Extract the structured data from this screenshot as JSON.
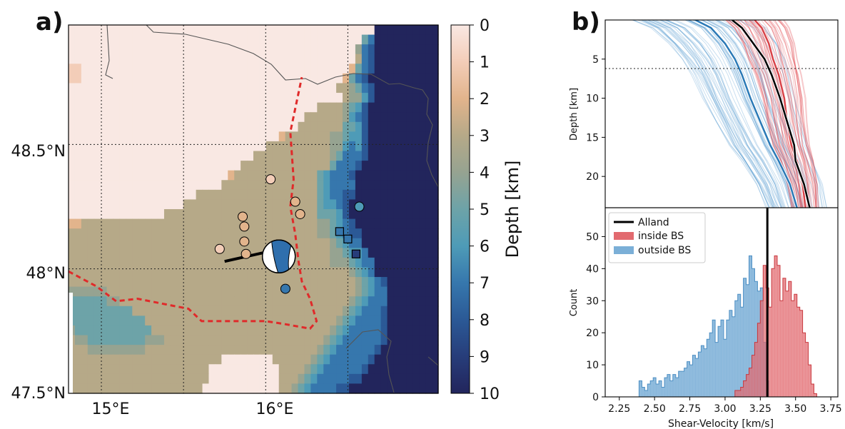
{
  "panel_a": {
    "label": "a)",
    "lat_ticks": [
      "48.5°N",
      "48°N",
      "47.5°N"
    ],
    "lon_ticks": [
      "15°E",
      "16°E"
    ],
    "colorbar": {
      "title": "Depth [km]",
      "ticks": [
        "0",
        "1",
        "2",
        "3",
        "4",
        "5",
        "6",
        "7",
        "8",
        "9",
        "10"
      ],
      "colors": [
        "#f9e8e3",
        "#f3cdb8",
        "#e2b48c",
        "#b6a988",
        "#96a391",
        "#6da3a8",
        "#4e9bb7",
        "#3677ad",
        "#2b5996",
        "#273d7a",
        "#22255c"
      ]
    }
  },
  "panel_b": {
    "label": "b)",
    "profile_ylabel": "Depth [km]",
    "profile_yticks": [
      "5",
      "10",
      "15",
      "20"
    ],
    "hist_ylabel": "Count",
    "hist_yticks": [
      "0",
      "10",
      "20",
      "30",
      "40",
      "50"
    ],
    "xlabel": "Shear-Velocity [km/s]",
    "xticks": [
      "2.25",
      "2.50",
      "2.75",
      "3.00",
      "3.25",
      "3.50",
      "3.75"
    ],
    "legend": [
      {
        "label": "Alland",
        "color": "#000000"
      },
      {
        "label": "inside BS",
        "color": "#e26a6f"
      },
      {
        "label": "outside BS",
        "color": "#7bafd7"
      }
    ]
  },
  "chart_data": [
    {
      "type": "heatmap",
      "title": "",
      "colorbar_label": "Depth [km]",
      "colorbar_range": [
        0,
        10
      ],
      "xlabel": "",
      "ylabel": "",
      "xlim": [
        14.8,
        17.05
      ],
      "ylim": [
        47.5,
        48.98
      ],
      "lon_ticks": [
        15,
        16
      ],
      "lat_ticks": [
        47.5,
        48,
        48.5
      ],
      "grid": true,
      "cells_depth_km_by_rows_north_to_south": [
        "0000000000000000000000000000000000000000000000009999999999",
        "0000000000000000000000000000000000000000000000579999999999",
        "0000000000000000000000000000000000000000000004789999999999",
        "0000000000000000000000000000000000000000000003789999999999",
        "1100000000000000000000000000000000000000000025789999999999",
        "1100000000000000000000000000000000000000000257899999999999",
        "0000000000000000000000000000000000000000003345789999999999",
        "0000000000000000000000000000000000000000000344689999999999",
        "0000000000000000000000000000000000000003333456899999999999",
        "0000000000000000000000000000000000000333333467899999999999",
        "0000000000000000000000000000000000003333333556899999999999",
        "0000000000000000000000000000000002333333344566899999999999",
        "0000000000000000000000000000000333333333344676899999999999",
        "0000000000000000000000000000033333333333345777899999999999",
        "0000000000000000000000000003333333333333357778999999999999",
        "0000000000000000000000000233333333333335677789999999999999",
        "0000000000000000000000003333333333333335677779999999999999",
        "0000000000000000000033333333333333333335677889999999999999",
        "0000000000000000003333333333333333333335667899999999999999",
        "0000000000000003333333333333333333333335556899999999999999",
        "2233333333333333333333333333333333333334456789999999999999",
        "3333333333333333333333333333333333333334456788999999999999",
        "3333333333333333333333333333333333333333345677999999999999",
        "3333333333333333333333333333333333333333344566799999999999",
        "3333333333333333333333333333333333333333344456779999999999",
        "3333333333333333333333333333333333333333333345679999999999",
        "3333333333333333333333333333333333333333333334567899999999",
        "4444443333333333333333333333333333333333333334567799999999",
        "5555554433333333333333333333333333333333333345677799999999",
        "5555555555333333333333333333333333333333333456777899999999",
        "5555555555553333333333333333333333333333334567777899999999",
        "4555555555555333333333333333333333333333345677777899999999",
        "3445555555554443333333333333333333333333456777777899999999",
        "3334444444443333333333333333333333333334567777778999999999",
        "3333333333333333333333330000000033333345677777789999999999",
        "3333333333333333333333000000000003333456777777899999999999",
        "3333333333333333333333000000000003334567777788999999999999",
        "3333333333333333333330000000000003345677778899999999999999"
      ],
      "events": [
        {
          "lon": 16.03,
          "lat": 48.36,
          "depth_km": 0.5
        },
        {
          "lon": 16.18,
          "lat": 48.27,
          "depth_km": 1.5
        },
        {
          "lon": 16.21,
          "lat": 48.22,
          "depth_km": 1.5
        },
        {
          "lon": 15.86,
          "lat": 48.21,
          "depth_km": 1.5
        },
        {
          "lon": 15.87,
          "lat": 48.17,
          "depth_km": 1.5
        },
        {
          "lon": 15.87,
          "lat": 48.11,
          "depth_km": 1.5
        },
        {
          "lon": 15.88,
          "lat": 48.06,
          "depth_km": 1.5
        },
        {
          "lon": 15.72,
          "lat": 48.08,
          "depth_km": 1.0
        },
        {
          "lon": 16.57,
          "lat": 48.25,
          "depth_km": 5.5
        },
        {
          "lon": 16.12,
          "lat": 47.92,
          "depth_km": 6.5
        }
      ],
      "stations": [
        {
          "lon": 16.45,
          "lat": 48.15,
          "depth_km": 7.0
        },
        {
          "lon": 16.5,
          "lat": 48.12,
          "depth_km": 6.5
        },
        {
          "lon": 16.55,
          "lat": 48.06,
          "depth_km": 9.0
        }
      ],
      "focal_mechanism": {
        "lon": 16.08,
        "lat": 48.05
      },
      "fault_trace": [
        [
          15.75,
          48.03
        ],
        [
          16.02,
          48.07
        ]
      ],
      "boundary_red_dashed": [
        [
          14.8,
          47.99
        ],
        [
          14.97,
          47.93
        ],
        [
          15.09,
          47.87
        ],
        [
          15.22,
          47.88
        ],
        [
          15.45,
          47.85
        ],
        [
          15.53,
          47.84
        ],
        [
          15.61,
          47.79
        ],
        [
          16.0,
          47.79
        ],
        [
          16.1,
          47.78
        ],
        [
          16.27,
          47.76
        ],
        [
          16.31,
          47.79
        ],
        [
          16.27,
          47.88
        ],
        [
          16.22,
          47.95
        ],
        [
          16.2,
          48.03
        ],
        [
          16.18,
          48.14
        ],
        [
          16.15,
          48.25
        ],
        [
          16.17,
          48.36
        ],
        [
          16.15,
          48.55
        ],
        [
          16.22,
          48.77
        ]
      ]
    },
    {
      "type": "line",
      "title": "",
      "xlabel": "",
      "ylabel": "Depth [km]",
      "xlim": [
        2.15,
        3.8
      ],
      "ylim": [
        24,
        0
      ],
      "y_inverted": true,
      "reference_depth_km": 7,
      "series": [
        {
          "name": "Alland",
          "color": "#000000",
          "x": [
            3.05,
            3.12,
            3.2,
            3.28,
            3.33,
            3.39,
            3.44,
            3.49,
            3.5,
            3.56,
            3.6
          ],
          "y": [
            0,
            1,
            3,
            5,
            7,
            10,
            13,
            16,
            18,
            21,
            24
          ]
        },
        {
          "name": "inside BS",
          "color": "#d94248",
          "x": [
            3.21,
            3.26,
            3.31,
            3.34,
            3.38,
            3.42,
            3.44,
            3.47,
            3.51,
            3.55,
            3.57
          ],
          "y": [
            0,
            1,
            3,
            5,
            7,
            10,
            13,
            16,
            18,
            21,
            24
          ]
        },
        {
          "name": "outside BS",
          "color": "#2a79b6",
          "x": [
            2.79,
            2.9,
            3.0,
            3.07,
            3.12,
            3.18,
            3.25,
            3.32,
            3.38,
            3.46,
            3.51
          ],
          "y": [
            0,
            1,
            3,
            5,
            7,
            10,
            13,
            16,
            18,
            21,
            24
          ]
        }
      ]
    },
    {
      "type": "bar",
      "title": "",
      "xlabel": "Shear-Velocity [km/s]",
      "ylabel": "Count",
      "xlim": [
        2.15,
        3.8
      ],
      "ylim": [
        0,
        59
      ],
      "bin_width": 0.02,
      "vertical_line": {
        "name": "Alland",
        "x": 3.3
      },
      "legend_position": "top-left",
      "series": [
        {
          "name": "outside BS",
          "color": "#7bafd7",
          "x": [
            2.4,
            2.42,
            2.44,
            2.46,
            2.48,
            2.5,
            2.52,
            2.54,
            2.56,
            2.58,
            2.6,
            2.62,
            2.64,
            2.66,
            2.68,
            2.7,
            2.72,
            2.74,
            2.76,
            2.78,
            2.8,
            2.82,
            2.84,
            2.86,
            2.88,
            2.9,
            2.92,
            2.94,
            2.96,
            2.98,
            3.0,
            3.02,
            3.04,
            3.06,
            3.08,
            3.1,
            3.12,
            3.14,
            3.16,
            3.18,
            3.2,
            3.22,
            3.24,
            3.26,
            3.28,
            3.3
          ],
          "values": [
            5,
            3,
            2,
            4,
            5,
            6,
            4,
            5,
            3,
            6,
            7,
            5,
            7,
            6,
            8,
            8,
            9,
            11,
            10,
            13,
            12,
            14,
            16,
            15,
            18,
            20,
            24,
            17,
            22,
            24,
            18,
            24,
            27,
            25,
            30,
            32,
            28,
            37,
            35,
            44,
            40,
            36,
            33,
            34,
            17,
            5
          ]
        },
        {
          "name": "inside BS",
          "color": "#e26a6f",
          "x": [
            3.08,
            3.1,
            3.12,
            3.14,
            3.16,
            3.18,
            3.2,
            3.22,
            3.24,
            3.26,
            3.28,
            3.3,
            3.32,
            3.34,
            3.36,
            3.38,
            3.4,
            3.42,
            3.44,
            3.46,
            3.48,
            3.5,
            3.52,
            3.54,
            3.56,
            3.58,
            3.6,
            3.62,
            3.64
          ],
          "values": [
            2,
            2,
            3,
            5,
            7,
            9,
            13,
            17,
            23,
            30,
            41,
            34,
            28,
            40,
            44,
            41,
            30,
            37,
            33,
            36,
            30,
            32,
            28,
            27,
            20,
            17,
            10,
            4,
            1
          ]
        }
      ]
    }
  ]
}
